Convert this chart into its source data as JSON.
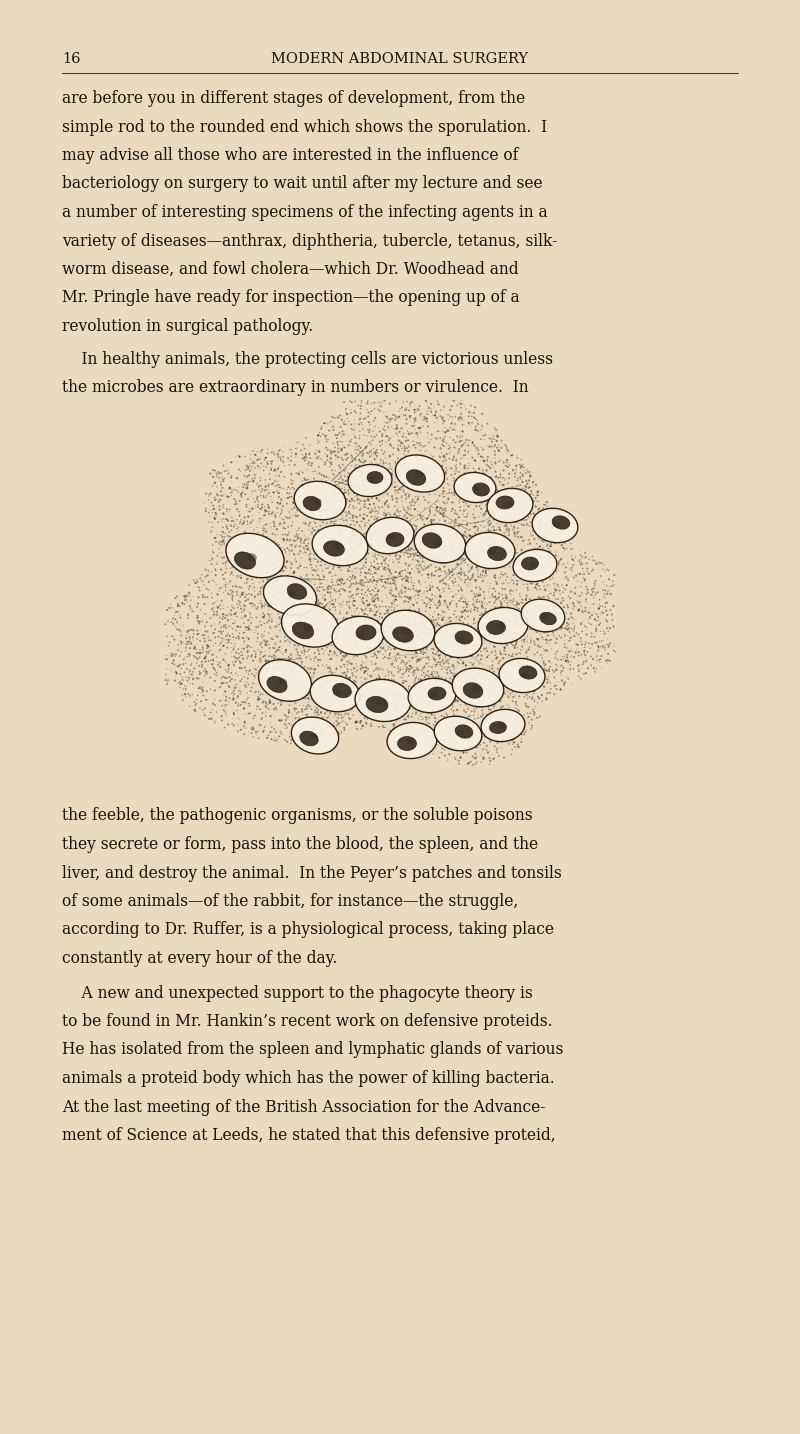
{
  "bg_color": "#EBD9C0",
  "page_number": "16",
  "header_title": "MODERN ABDOMINAL SURGERY",
  "text_color": "#1a1205",
  "header_fontsize": 10.5,
  "body_fontsize": 11.2,
  "paragraph1_lines": [
    "are before you in different stages of development, from the",
    "simple rod to the rounded end which shows the sporulation.  I",
    "may advise all those who are interested in the influence of",
    "bacteriology on surgery to wait until after my lecture and see",
    "a number of interesting specimens of the infecting agents in a",
    "variety of diseases—anthrax, diphtheria, tubercle, tetanus, silk-",
    "worm disease, and fowl cholera—which Dr. Woodhead and",
    "Mr. Pringle have ready for inspection—the opening up of a",
    "revolution in surgical pathology."
  ],
  "paragraph2_lines": [
    "    In healthy animals, the protecting cells are victorious unless",
    "the microbes are extraordinary in numbers or virulence.  In"
  ],
  "paragraph3_lines": [
    "the feeble, the pathogenic organisms, or the soluble poisons",
    "they secrete or form, pass into the blood, the spleen, and the",
    "liver, and destroy the animal.  In the Peyer’s patches and tonsils",
    "of some animals—of the rabbit, for instance—the struggle,",
    "according to Dr. Ruffer, is a physiological process, taking place",
    "constantly at every hour of the day."
  ],
  "paragraph4_lines": [
    "    A new and unexpected support to the phagocyte theory is",
    "to be found in Mr. Hankin’s recent work on defensive proteids.",
    "He has isolated from the spleen and lymphatic glands of various",
    "animals a proteid body which has the power of killing bacteria.",
    "At the last meeting of the British Association for the Advance-",
    "ment of Science at Leeds, he stated that this defensive proteid,"
  ]
}
